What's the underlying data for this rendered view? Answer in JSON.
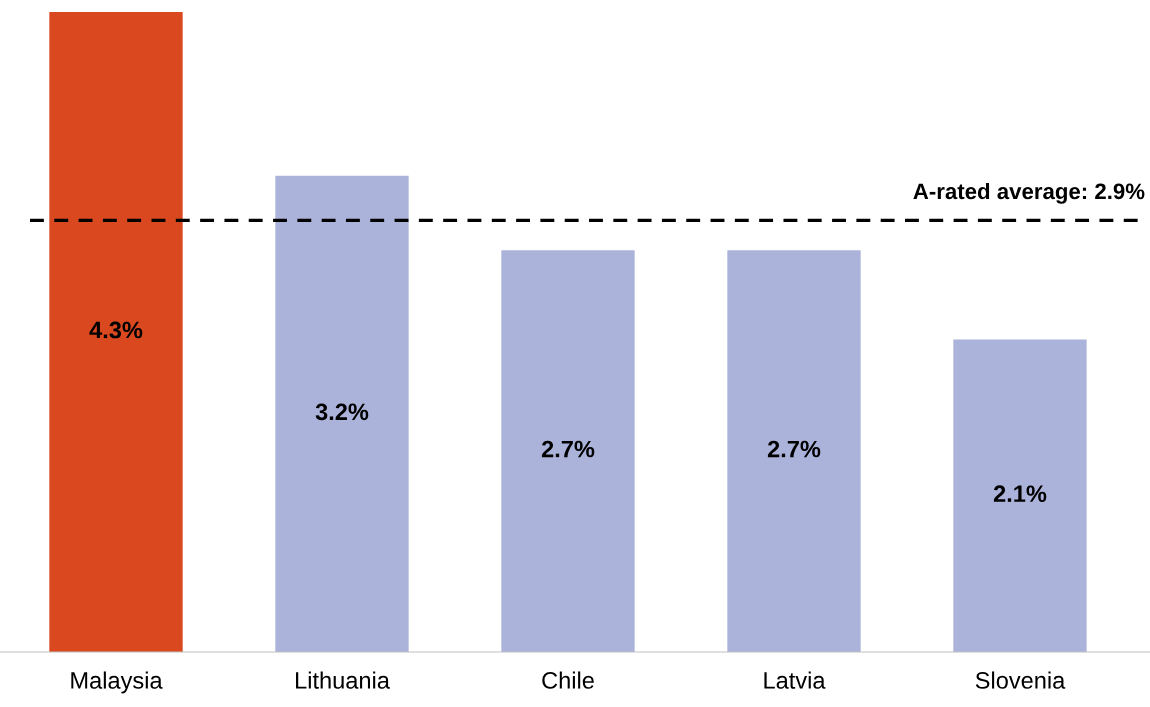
{
  "chart_data": {
    "type": "bar",
    "categories": [
      "Malaysia",
      "Lithuania",
      "Chile",
      "Latvia",
      "Slovenia"
    ],
    "values": [
      4.3,
      3.2,
      2.7,
      2.7,
      2.1
    ],
    "value_labels": [
      "4.3%",
      "3.2%",
      "2.7%",
      "2.7%",
      "2.1%"
    ],
    "colors": [
      "#d9481e",
      "#abb3db",
      "#abb3db",
      "#abb3db",
      "#abb3db"
    ],
    "ref_lines": [
      {
        "axis": "y",
        "value": 2.9,
        "label": "A-rated average: 2.9%",
        "color": "#000000",
        "line_style": "dashed"
      }
    ],
    "grid": false,
    "legend": false
  }
}
